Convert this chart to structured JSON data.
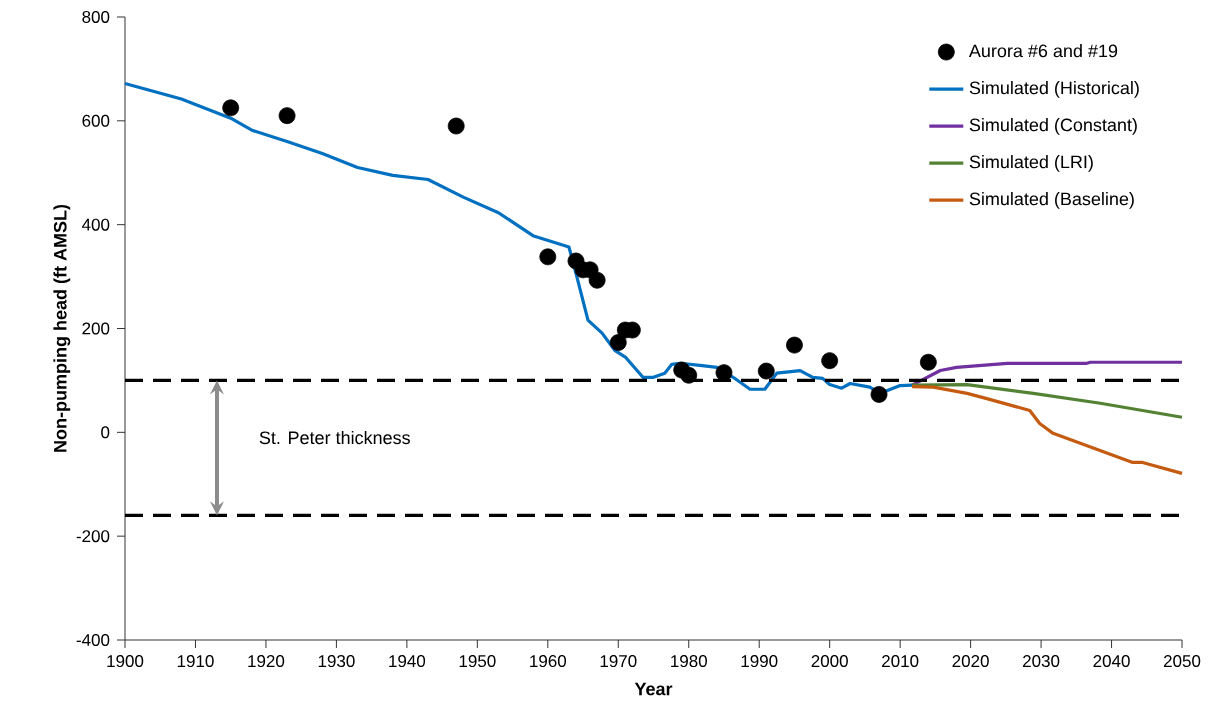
{
  "chart_data": {
    "type": "line",
    "xlabel": "Year",
    "ylabel": "Non-pumping head (ft AMSL)",
    "xlim": [
      1900,
      2050
    ],
    "ylim": [
      -400,
      800
    ],
    "xticks": [
      1900,
      1910,
      1920,
      1930,
      1940,
      1950,
      1960,
      1970,
      1980,
      1990,
      2000,
      2010,
      2020,
      2030,
      2040,
      2050
    ],
    "yticks": [
      -400,
      -200,
      0,
      200,
      400,
      600,
      800
    ],
    "grid": false,
    "legend": "top right",
    "line_style": "solid",
    "series": [
      {
        "name": "Aurora #6 and #19",
        "type": "scatter",
        "marker": "circle",
        "color": "#000000",
        "x": [
          1915,
          1923,
          1947,
          1960,
          1964,
          1965,
          1966,
          1967,
          1970,
          1971,
          1972,
          1979,
          1980,
          1985,
          1991,
          1995,
          2000,
          2007,
          2014
        ],
        "values": [
          625,
          610,
          590,
          338,
          330,
          313,
          313,
          293,
          173,
          197,
          197,
          120,
          110,
          115,
          118,
          168,
          138,
          73,
          135
        ]
      },
      {
        "name": "Simulated (Historical)",
        "color": "#0070c0",
        "x": [
          1900,
          1908,
          1915,
          1918,
          1923,
          1928,
          1933,
          1938,
          1943,
          1948,
          1953,
          1958,
          1963,
          1964,
          1965.7,
          1967.7,
          1969.5,
          1971,
          1973.5,
          1975,
          1976.6,
          1977.6,
          1978.8,
          1981.6,
          1984,
          1986.3,
          1988.7,
          1990.8,
          1992.5,
          1995.8,
          1997.6,
          1999,
          2000,
          2001.7,
          2002.9,
          2005.7,
          2007.1,
          2010,
          2011.7
        ],
        "values": [
          672,
          642,
          605,
          582,
          560,
          537,
          510,
          495,
          487,
          453,
          423,
          378,
          357,
          306,
          216,
          191,
          158,
          145,
          106,
          106,
          114,
          131,
          133,
          129,
          125,
          106,
          83,
          83,
          114,
          119,
          106,
          104,
          92,
          85,
          94,
          87,
          75,
          90,
          91
        ]
      },
      {
        "name": "Simulated (Constant)",
        "color": "#7030a0",
        "x": [
          2011.7,
          2015.7,
          2018,
          2025.2,
          2036.5,
          2037,
          2050
        ],
        "values": [
          91,
          119,
          125,
          133,
          133,
          135,
          135
        ]
      },
      {
        "name": "Simulated (LRI)",
        "color": "#548235",
        "x": [
          2011.7,
          2019.5,
          2028.9,
          2038.4,
          2050
        ],
        "values": [
          91,
          92,
          75,
          56,
          29
        ]
      },
      {
        "name": "Simulated (Baseline)",
        "color": "#c55a11",
        "x": [
          2011.7,
          2014.7,
          2019.5,
          2022.3,
          2028.4,
          2029.8,
          2031.7,
          2043,
          2044.4,
          2050
        ],
        "values": [
          88,
          87,
          75,
          65,
          42,
          17,
          -2,
          -58,
          -58,
          -79
        ]
      }
    ],
    "ref_lines": [
      {
        "axis": "y",
        "value": 100,
        "color": "#000000",
        "line_style": "dashed"
      },
      {
        "axis": "y",
        "value": -160,
        "color": "#000000",
        "line_style": "dashed"
      }
    ],
    "annotations": [
      "St. Peter thickness"
    ]
  }
}
